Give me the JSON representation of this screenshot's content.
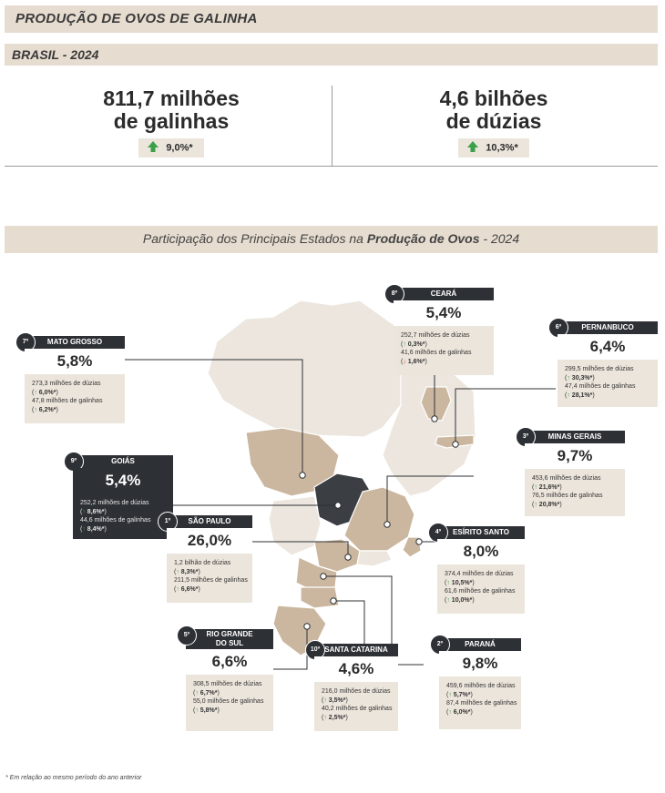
{
  "header": {
    "title": "PRODUÇÃO DE OVOS DE GALINHA",
    "subtitle": "BRASIL - 2024"
  },
  "kpis": [
    {
      "line1": "811,7 milhões",
      "line2": "de galinhas",
      "change": "9,0%*",
      "direction": "up"
    },
    {
      "line1": "4,6 bilhões",
      "line2": "de dúzias",
      "change": "10,3%*",
      "direction": "up"
    }
  ],
  "map_title": {
    "prefix": "Participação dos Principais Estados na ",
    "bold": "Produção de Ovos",
    "suffix": " - 2024"
  },
  "colors": {
    "band": "#e6dcd0",
    "dark": "#2d3035",
    "up": "#3aa04a",
    "down": "#d23a3a",
    "highlight": "#cbb79f",
    "map_base": "#ece6de"
  },
  "chart_data": {
    "type": "map",
    "title": "Participação dos Principais Estados na Produção de Ovos - 2024",
    "states": [
      {
        "rank": "1º",
        "name": "SÃO PAULO",
        "share": "26,0%",
        "dozens": "1,2 bilhão de dúzias",
        "dozens_change": "8,3%*",
        "dozens_dir": "up",
        "hens": "211,5 milhões de galinhas",
        "hens_change": "6,6%*",
        "hens_dir": "up"
      },
      {
        "rank": "2º",
        "name": "PARANÁ",
        "share": "9,8%",
        "dozens": "459,6 milhões de dúzias",
        "dozens_change": "5,7%*",
        "dozens_dir": "up",
        "hens": "87,4 milhões de galinhas",
        "hens_change": "6,0%*",
        "hens_dir": "up"
      },
      {
        "rank": "3º",
        "name": "MINAS GERAIS",
        "share": "9,7%",
        "dozens": "453,6 milhões de dúzias",
        "dozens_change": "21,6%*",
        "dozens_dir": "up",
        "hens": "76,5 milhões de galinhas",
        "hens_change": "20,8%*",
        "hens_dir": "up"
      },
      {
        "rank": "4º",
        "name": "ESÍRITO SANTO",
        "share": "8,0%",
        "dozens": "374,4 milhões de dúzias",
        "dozens_change": "10,5%*",
        "dozens_dir": "up",
        "hens": "61,6 milhões de galinhas",
        "hens_change": "10,0%*",
        "hens_dir": "up"
      },
      {
        "rank": "5º",
        "name_line1": "RIO GRANDE",
        "name_line2": "DO SUL",
        "share": "6,6%",
        "dozens": "308,5 milhões de dúzias",
        "dozens_change": "6,7%*",
        "dozens_dir": "up",
        "hens": "55,0 milhões de galinhas",
        "hens_change": "5,8%*",
        "hens_dir": "up"
      },
      {
        "rank": "6º",
        "name": "PERNANBUCO",
        "share": "6,4%",
        "dozens": "299,5 milhões de dúzias",
        "dozens_change": "30,3%*",
        "dozens_dir": "up",
        "hens": "47,4 milhões de galinhas",
        "hens_change": "28,1%*",
        "hens_dir": "up"
      },
      {
        "rank": "7º",
        "name": "MATO GROSSO",
        "share": "5,8%",
        "dozens": "273,3 milhões de dúzias",
        "dozens_change": "6,0%*",
        "dozens_dir": "up",
        "hens": "47,8 milhões de galinhas",
        "hens_change": "6,2%*",
        "hens_dir": "up"
      },
      {
        "rank": "8º",
        "name": "CEARÁ",
        "share": "5,4%",
        "dozens": "252,7 milhões de dúzias",
        "dozens_change": "0,3%*",
        "dozens_dir": "up",
        "hens": "41,6 milhões de galinhas",
        "hens_change": "1,6%*",
        "hens_dir": "down"
      },
      {
        "rank": "9º",
        "name": "GOIÁS",
        "share": "5,4%",
        "dozens": "252,2 milhões de dúzias",
        "dozens_change": "8,6%*",
        "dozens_dir": "up",
        "hens": "44,6 milhões de galinhas",
        "hens_change": "8,4%*",
        "hens_dir": "up"
      },
      {
        "rank": "10º",
        "name": "SANTA CATARINA",
        "share": "4,6%",
        "dozens": "216,0 milhões de dúzias",
        "dozens_change": "3,5%*",
        "dozens_dir": "up",
        "hens": "40,2 milhões de galinhas",
        "hens_change": "2,5%*",
        "hens_dir": "up"
      }
    ]
  },
  "footnote": "* Em relação ao mesmo período do ano anterior"
}
